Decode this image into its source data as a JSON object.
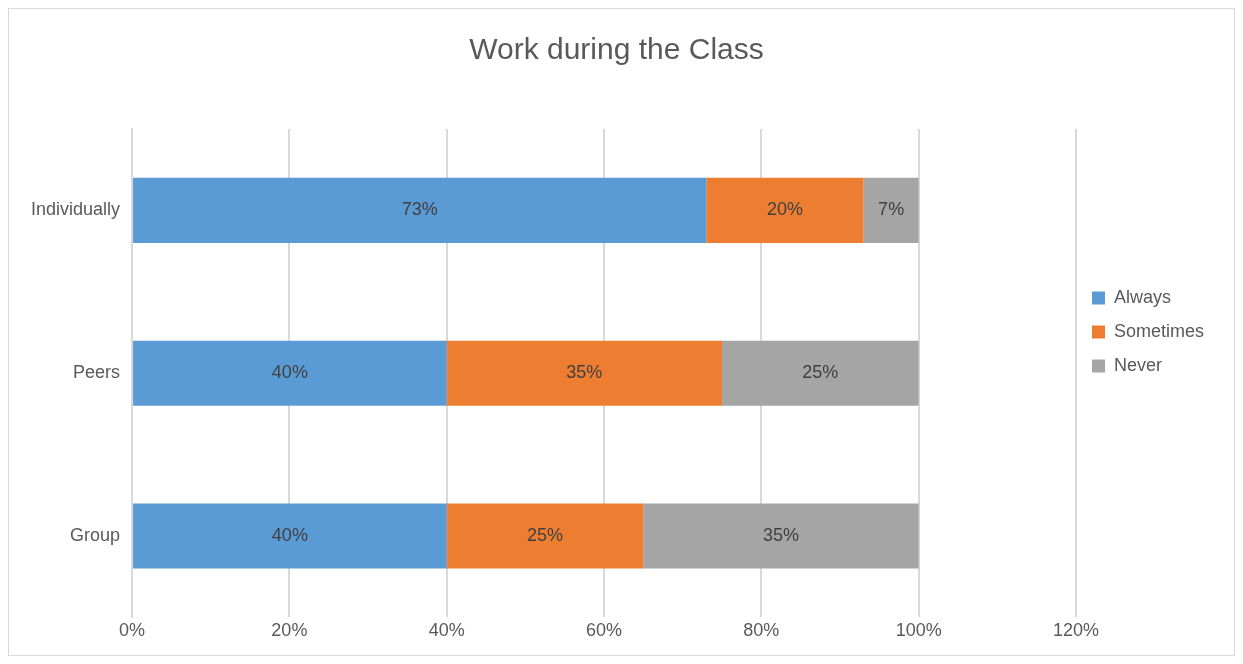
{
  "chart_data": {
    "type": "bar",
    "orientation": "horizontal",
    "stacked": true,
    "title": "Work during the Class",
    "categories": [
      "Individually",
      "Peers",
      "Group"
    ],
    "series": [
      {
        "name": "Always",
        "color": "#5b9bd5",
        "values": [
          73,
          40,
          40
        ],
        "value_labels": [
          "73%",
          "40%",
          "40%"
        ]
      },
      {
        "name": "Sometimes",
        "color": "#ed7d31",
        "values": [
          20,
          35,
          25
        ],
        "value_labels": [
          "20%",
          "35%",
          "25%"
        ]
      },
      {
        "name": "Never",
        "color": "#a5a5a5",
        "values": [
          7,
          25,
          35
        ],
        "value_labels": [
          "7%",
          "25%",
          "35%"
        ]
      }
    ],
    "xlim": [
      0,
      120
    ],
    "xticks": [
      {
        "value": 0,
        "label": "0%"
      },
      {
        "value": 20,
        "label": "20%"
      },
      {
        "value": 40,
        "label": "40%"
      },
      {
        "value": 60,
        "label": "60%"
      },
      {
        "value": 80,
        "label": "80%"
      },
      {
        "value": 100,
        "label": "100%"
      },
      {
        "value": 120,
        "label": "120%"
      }
    ],
    "grid": "x",
    "legend": "right"
  }
}
